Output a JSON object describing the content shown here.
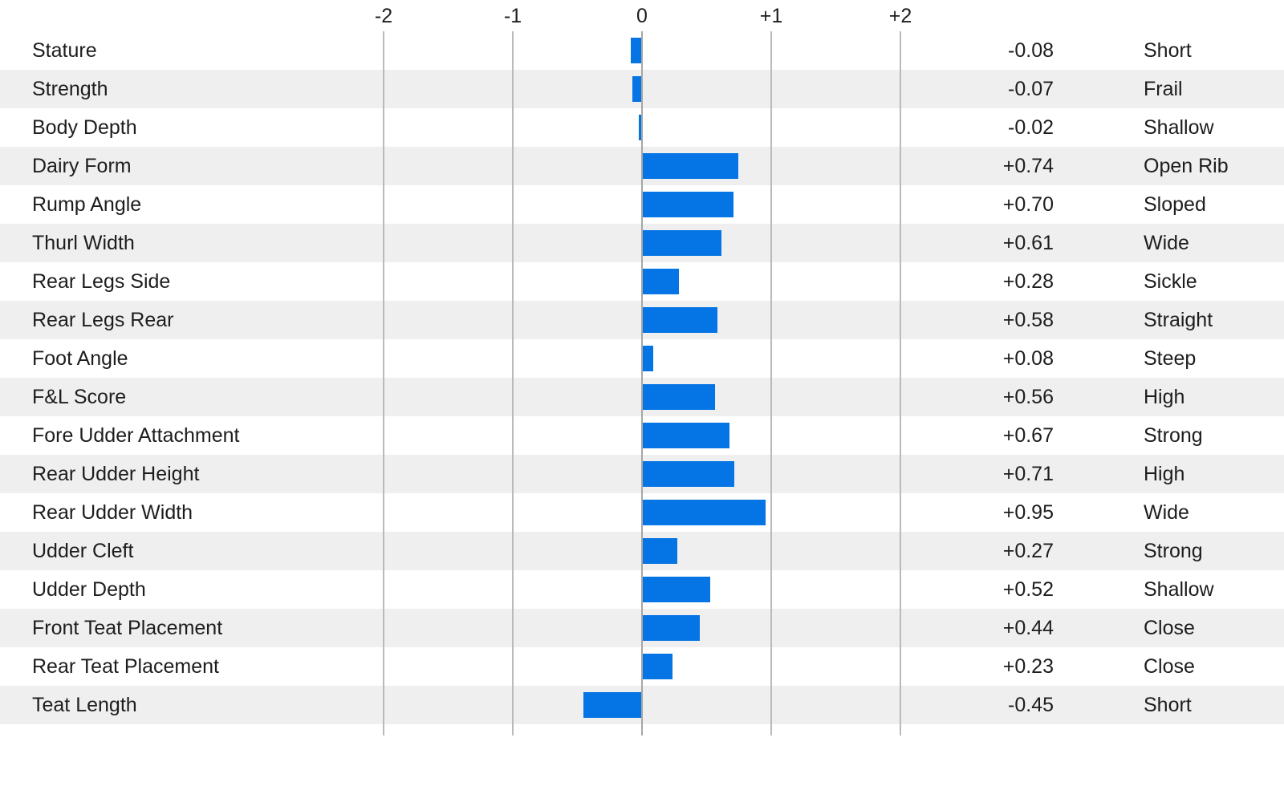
{
  "chart_data": {
    "type": "bar",
    "orientation": "horizontal",
    "title": "",
    "xlabel": "",
    "ylabel": "",
    "xlim": [
      -2.5,
      2.5
    ],
    "grid": true,
    "x_ticks": [
      "-2",
      "-1",
      "0",
      "+1",
      "+2"
    ],
    "x_tick_values": [
      -2,
      -1,
      0,
      1,
      2
    ],
    "categories": [
      "Stature",
      "Strength",
      "Body Depth",
      "Dairy Form",
      "Rump Angle",
      "Thurl Width",
      "Rear Legs Side",
      "Rear Legs Rear",
      "Foot Angle",
      "F&L Score",
      "Fore Udder Attachment",
      "Rear Udder Height",
      "Rear Udder Width",
      "Udder Cleft",
      "Udder Depth",
      "Front Teat Placement",
      "Rear Teat Placement",
      "Teat Length"
    ],
    "values": [
      -0.08,
      -0.07,
      -0.02,
      0.74,
      0.7,
      0.61,
      0.28,
      0.58,
      0.08,
      0.56,
      0.67,
      0.71,
      0.95,
      0.27,
      0.52,
      0.44,
      0.23,
      -0.45
    ],
    "rows": [
      {
        "trait": "Stature",
        "value": -0.08,
        "value_text": "-0.08",
        "descriptor": "Short"
      },
      {
        "trait": "Strength",
        "value": -0.07,
        "value_text": "-0.07",
        "descriptor": "Frail"
      },
      {
        "trait": "Body Depth",
        "value": -0.02,
        "value_text": "-0.02",
        "descriptor": "Shallow"
      },
      {
        "trait": "Dairy Form",
        "value": 0.74,
        "value_text": "+0.74",
        "descriptor": "Open Rib"
      },
      {
        "trait": "Rump Angle",
        "value": 0.7,
        "value_text": "+0.70",
        "descriptor": "Sloped"
      },
      {
        "trait": "Thurl Width",
        "value": 0.61,
        "value_text": "+0.61",
        "descriptor": "Wide"
      },
      {
        "trait": "Rear Legs Side",
        "value": 0.28,
        "value_text": "+0.28",
        "descriptor": "Sickle"
      },
      {
        "trait": "Rear Legs Rear",
        "value": 0.58,
        "value_text": "+0.58",
        "descriptor": "Straight"
      },
      {
        "trait": "Foot Angle",
        "value": 0.08,
        "value_text": "+0.08",
        "descriptor": "Steep"
      },
      {
        "trait": "F&L Score",
        "value": 0.56,
        "value_text": "+0.56",
        "descriptor": "High"
      },
      {
        "trait": "Fore Udder Attachment",
        "value": 0.67,
        "value_text": "+0.67",
        "descriptor": "Strong"
      },
      {
        "trait": "Rear Udder Height",
        "value": 0.71,
        "value_text": "+0.71",
        "descriptor": "High"
      },
      {
        "trait": "Rear Udder Width",
        "value": 0.95,
        "value_text": "+0.95",
        "descriptor": "Wide"
      },
      {
        "trait": "Udder Cleft",
        "value": 0.27,
        "value_text": "+0.27",
        "descriptor": "Strong"
      },
      {
        "trait": "Udder Depth",
        "value": 0.52,
        "value_text": "+0.52",
        "descriptor": "Shallow"
      },
      {
        "trait": "Front Teat Placement",
        "value": 0.44,
        "value_text": "+0.44",
        "descriptor": "Close"
      },
      {
        "trait": "Rear Teat Placement",
        "value": 0.23,
        "value_text": "+0.23",
        "descriptor": "Close"
      },
      {
        "trait": "Teat Length",
        "value": -0.45,
        "value_text": "-0.45",
        "descriptor": "Short"
      }
    ],
    "colors": {
      "bar": "#0574e4",
      "stripe": "#efefef",
      "gridline": "#bababa",
      "zero_gridline": "#a6a6a6",
      "text": "#1d1d1f",
      "background": "#ffffff"
    },
    "legend": null
  }
}
